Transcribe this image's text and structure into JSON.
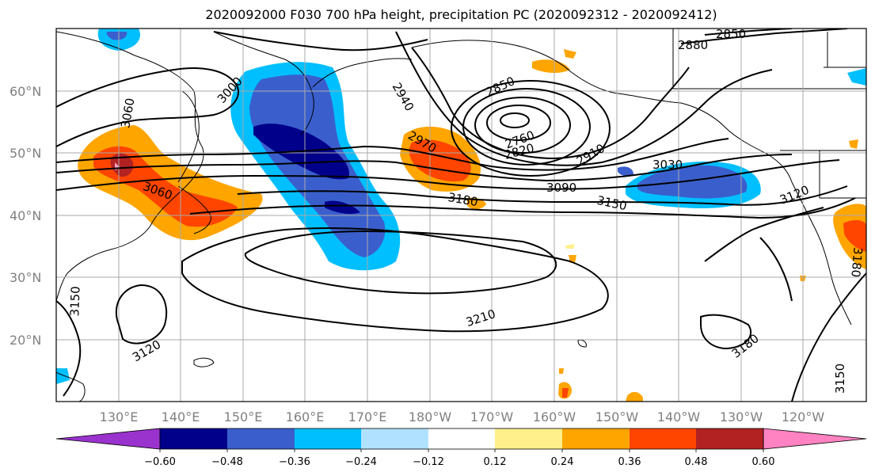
{
  "title": "2020092000 F030 700 hPa height, precipitation PC (2020092312 - 2020092412)",
  "map": {
    "lat_labels": [
      "60°N",
      "50°N",
      "40°N",
      "30°N",
      "20°N"
    ],
    "lon_labels": [
      "130°E",
      "140°E",
      "150°E",
      "160°E",
      "170°E",
      "180°W",
      "170°W",
      "160°W",
      "150°W",
      "140°W",
      "130°W",
      "120°W"
    ],
    "contour_labels": [
      "3000",
      "3060",
      "3060",
      "2940",
      "2850",
      "2760",
      "2820",
      "2910",
      "2970",
      "3180",
      "3090",
      "3150",
      "3030",
      "3120",
      "2880",
      "2850",
      "3210",
      "3120",
      "3150",
      "3180",
      "3150",
      "3180"
    ]
  },
  "colorbar": {
    "ticks": [
      "−0.60",
      "−0.48",
      "−0.36",
      "−0.24",
      "−0.12",
      "0.12",
      "0.24",
      "0.36",
      "0.48",
      "0.60"
    ],
    "colors": [
      "#9a32cd",
      "#00008b",
      "#3a5fcd",
      "#00bfff",
      "#b0e2ff",
      "#ffffff",
      "#fff08c",
      "#ffa500",
      "#ff4500",
      "#b22222",
      "#ff83c2"
    ]
  }
}
